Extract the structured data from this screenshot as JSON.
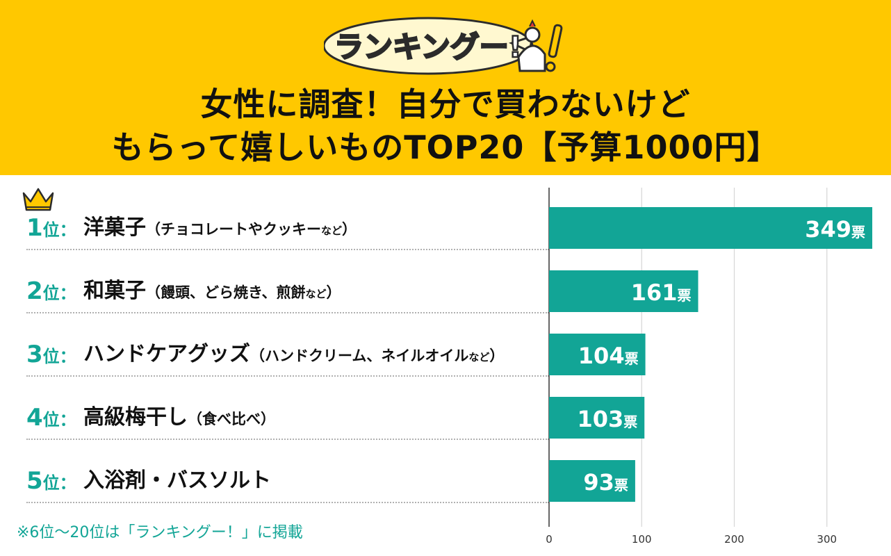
{
  "header": {
    "logo_text": "ランキングー!",
    "title_line1": "女性に調査！自分で買わないけど",
    "title_line2": "もらって嬉しいものTOP20【予算1000円】"
  },
  "rows": [
    {
      "rank_num": "1",
      "rank_suffix": "位：",
      "name": "洋菓子",
      "note_open": "（チョコレートやクッキー",
      "note_small": "など",
      "note_close": "）"
    },
    {
      "rank_num": "2",
      "rank_suffix": "位：",
      "name": "和菓子",
      "note_open": "（饅頭、どら焼き、煎餅",
      "note_small": "など",
      "note_close": "）"
    },
    {
      "rank_num": "3",
      "rank_suffix": "位：",
      "name": "ハンドケアグッズ",
      "note_open": "（ハンドクリーム、ネイルオイル",
      "note_small": "など",
      "note_close": "）"
    },
    {
      "rank_num": "4",
      "rank_suffix": "位：",
      "name": "高級梅干し",
      "note_open": "（食べ比べ）",
      "note_small": "",
      "note_close": ""
    },
    {
      "rank_num": "5",
      "rank_suffix": "位：",
      "name": "入浴剤・バスソルト",
      "note_open": "",
      "note_small": "",
      "note_close": ""
    }
  ],
  "footnote": "※6位〜20位は「ランキングー！」に掲載",
  "colors": {
    "bar": "#12a596",
    "header": "#ffc800",
    "accent_text": "#12a596"
  },
  "chart_data": {
    "type": "bar",
    "orientation": "horizontal",
    "categories": [
      "洋菓子",
      "和菓子",
      "ハンドケアグッズ",
      "高級梅干し",
      "入浴剤・バスソルト"
    ],
    "values": [
      349,
      161,
      104,
      103,
      93
    ],
    "value_suffix": "票",
    "xlim": [
      0,
      350
    ],
    "xticks": [
      0,
      100,
      200,
      300
    ],
    "grid": true
  }
}
